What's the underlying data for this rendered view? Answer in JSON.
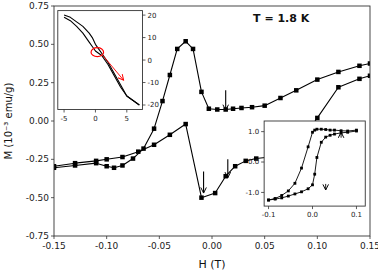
{
  "chart_data": [
    {
      "type": "line",
      "title": "T = 1.8 K",
      "xlabel": "H (T)",
      "ylabel": "M (10⁻³ emu/g)",
      "xlim": [
        -0.15,
        0.15
      ],
      "ylim": [
        -0.75,
        0.75
      ],
      "xticks": [
        -0.15,
        {
          "value": -0.1,
          "label": "-0.10"
        },
        -0.05,
        {
          "value": 0.0,
          "label": "0.00"
        },
        0.05,
        {
          "value": 0.1,
          "label": "0.10"
        },
        0.15
      ],
      "yticks": [
        -0.75,
        {
          "value": -0.5,
          "label": "-0.50"
        },
        -0.25,
        {
          "value": 0.0,
          "label": "0.00"
        },
        0.25,
        {
          "value": 0.5,
          "label": "0.50"
        },
        0.75
      ],
      "series": [
        {
          "x": [
            -0.15,
            -0.13,
            -0.11,
            -0.1,
            -0.093,
            -0.085,
            -0.075,
            -0.065,
            -0.055,
            -0.047,
            -0.04,
            -0.033,
            -0.025,
            -0.018,
            -0.01,
            -0.003,
            0.005,
            0.013,
            0.02,
            0.028,
            0.038,
            0.05,
            0.065,
            0.08,
            0.1,
            0.12,
            0.14,
            0.15
          ],
          "values": [
            -0.305,
            -0.29,
            -0.275,
            -0.295,
            -0.305,
            -0.29,
            -0.245,
            -0.18,
            -0.05,
            0.13,
            0.3,
            0.47,
            0.52,
            0.47,
            0.19,
            0.08,
            0.075,
            0.075,
            0.08,
            0.085,
            0.09,
            0.1,
            0.15,
            0.2,
            0.27,
            0.32,
            0.36,
            0.375
          ],
          "color": "#000000",
          "marker": "square",
          "line_style": "solid"
        },
        {
          "x": [
            -0.15,
            -0.13,
            -0.11,
            -0.1,
            -0.085,
            -0.07,
            -0.055,
            -0.04,
            -0.025,
            -0.01,
            0.003,
            0.013,
            0.022,
            0.032,
            0.042,
            0.055,
            0.07,
            0.085,
            0.1,
            0.12,
            0.14,
            0.15
          ],
          "values": [
            -0.295,
            -0.275,
            -0.26,
            -0.25,
            -0.235,
            -0.2,
            -0.155,
            -0.09,
            -0.02,
            -0.5,
            -0.47,
            -0.36,
            -0.295,
            -0.26,
            -0.245,
            -0.235,
            -0.22,
            -0.13,
            0.02,
            0.22,
            0.275,
            0.295
          ],
          "color": "#000000",
          "marker": "square",
          "line_style": "solid"
        }
      ],
      "arrows": [
        {
          "xy": [
            0.013,
            0.07
          ],
          "xytext": [
            0.013,
            0.2
          ],
          "color": "#000000"
        },
        {
          "xy": [
            0.015,
            -0.37
          ],
          "xytext": [
            0.015,
            -0.25
          ],
          "color": "#000000"
        },
        {
          "xy": [
            -0.008,
            -0.47
          ],
          "xytext": [
            -0.008,
            -0.33
          ],
          "color": "#000000"
        }
      ]
    },
    {
      "type": "line",
      "xlim": [
        -6,
        7.5
      ],
      "ylim": [
        -22,
        22
      ],
      "xticks": [
        -5,
        0,
        5
      ],
      "yticks": [
        -20,
        -10,
        0,
        10,
        20
      ],
      "x": [
        -5,
        -4,
        -3,
        -2,
        -1,
        -0.5,
        0,
        0.5,
        1,
        2,
        3,
        4,
        5,
        6,
        7
      ],
      "series": [
        {
          "values": [
            19,
            17.5,
            15,
            12,
            8,
            6,
            4,
            3,
            2,
            -2,
            -7,
            -12,
            -16,
            -18,
            -20
          ],
          "color": "#000000",
          "line_style": "solid"
        },
        {
          "values": [
            20,
            19,
            17,
            15,
            12,
            10,
            7,
            5,
            3,
            -1,
            -6,
            -11,
            -16,
            -18,
            -20
          ],
          "color": "#000000",
          "line_style": "solid"
        }
      ],
      "ellipse": {
        "x": 0.3,
        "y": 3.5,
        "rx": 1.0,
        "ry": 2.0,
        "color": "#ff0000"
      },
      "arrows": [
        {
          "xy": [
            4.5,
            -9.0
          ],
          "xytext": [
            1.2,
            2.0
          ],
          "color": "#ff0000"
        }
      ]
    },
    {
      "type": "line",
      "xlim": [
        -0.11,
        0.12
      ],
      "ylim": [
        -1.45,
        1.35
      ],
      "xticks": [
        -0.1,
        {
          "value": 0.0,
          "label": "0.0"
        },
        0.1
      ],
      "yticks": [
        {
          "value": -1.0,
          "label": "-1.0"
        },
        {
          "value": 0.0,
          "label": "0.0"
        },
        {
          "value": 1.0,
          "label": "1.0"
        }
      ],
      "x": [
        -0.1,
        -0.085,
        -0.07,
        -0.055,
        -0.04,
        -0.025,
        -0.01,
        0.0,
        0.005,
        0.01,
        0.02,
        0.03,
        0.04,
        0.05,
        0.065,
        0.08,
        0.1
      ],
      "series": [
        {
          "values": [
            -1.25,
            -1.2,
            -1.1,
            -0.95,
            -0.7,
            -0.2,
            0.5,
            0.98,
            1.05,
            1.08,
            1.08,
            1.07,
            1.05,
            1.05,
            1.03,
            1.02,
            1.05
          ],
          "color": "#000000",
          "marker": "square",
          "line_style": "solid"
        },
        {
          "values": [
            -1.25,
            -1.22,
            -1.18,
            -1.12,
            -1.05,
            -0.98,
            -0.88,
            -0.75,
            -0.4,
            0.15,
            0.65,
            0.82,
            0.88,
            0.92,
            0.96,
            0.98,
            1.02
          ],
          "color": "#000000",
          "marker": "square",
          "line_style": "solid"
        }
      ],
      "arrows": [
        {
          "xy": [
            0.065,
            0.98
          ],
          "xytext": [
            0.065,
            0.8
          ],
          "color": "#000000"
        },
        {
          "xy": [
            0.03,
            -0.92
          ],
          "xytext": [
            0.03,
            -0.72
          ],
          "color": "#000000"
        }
      ]
    }
  ]
}
